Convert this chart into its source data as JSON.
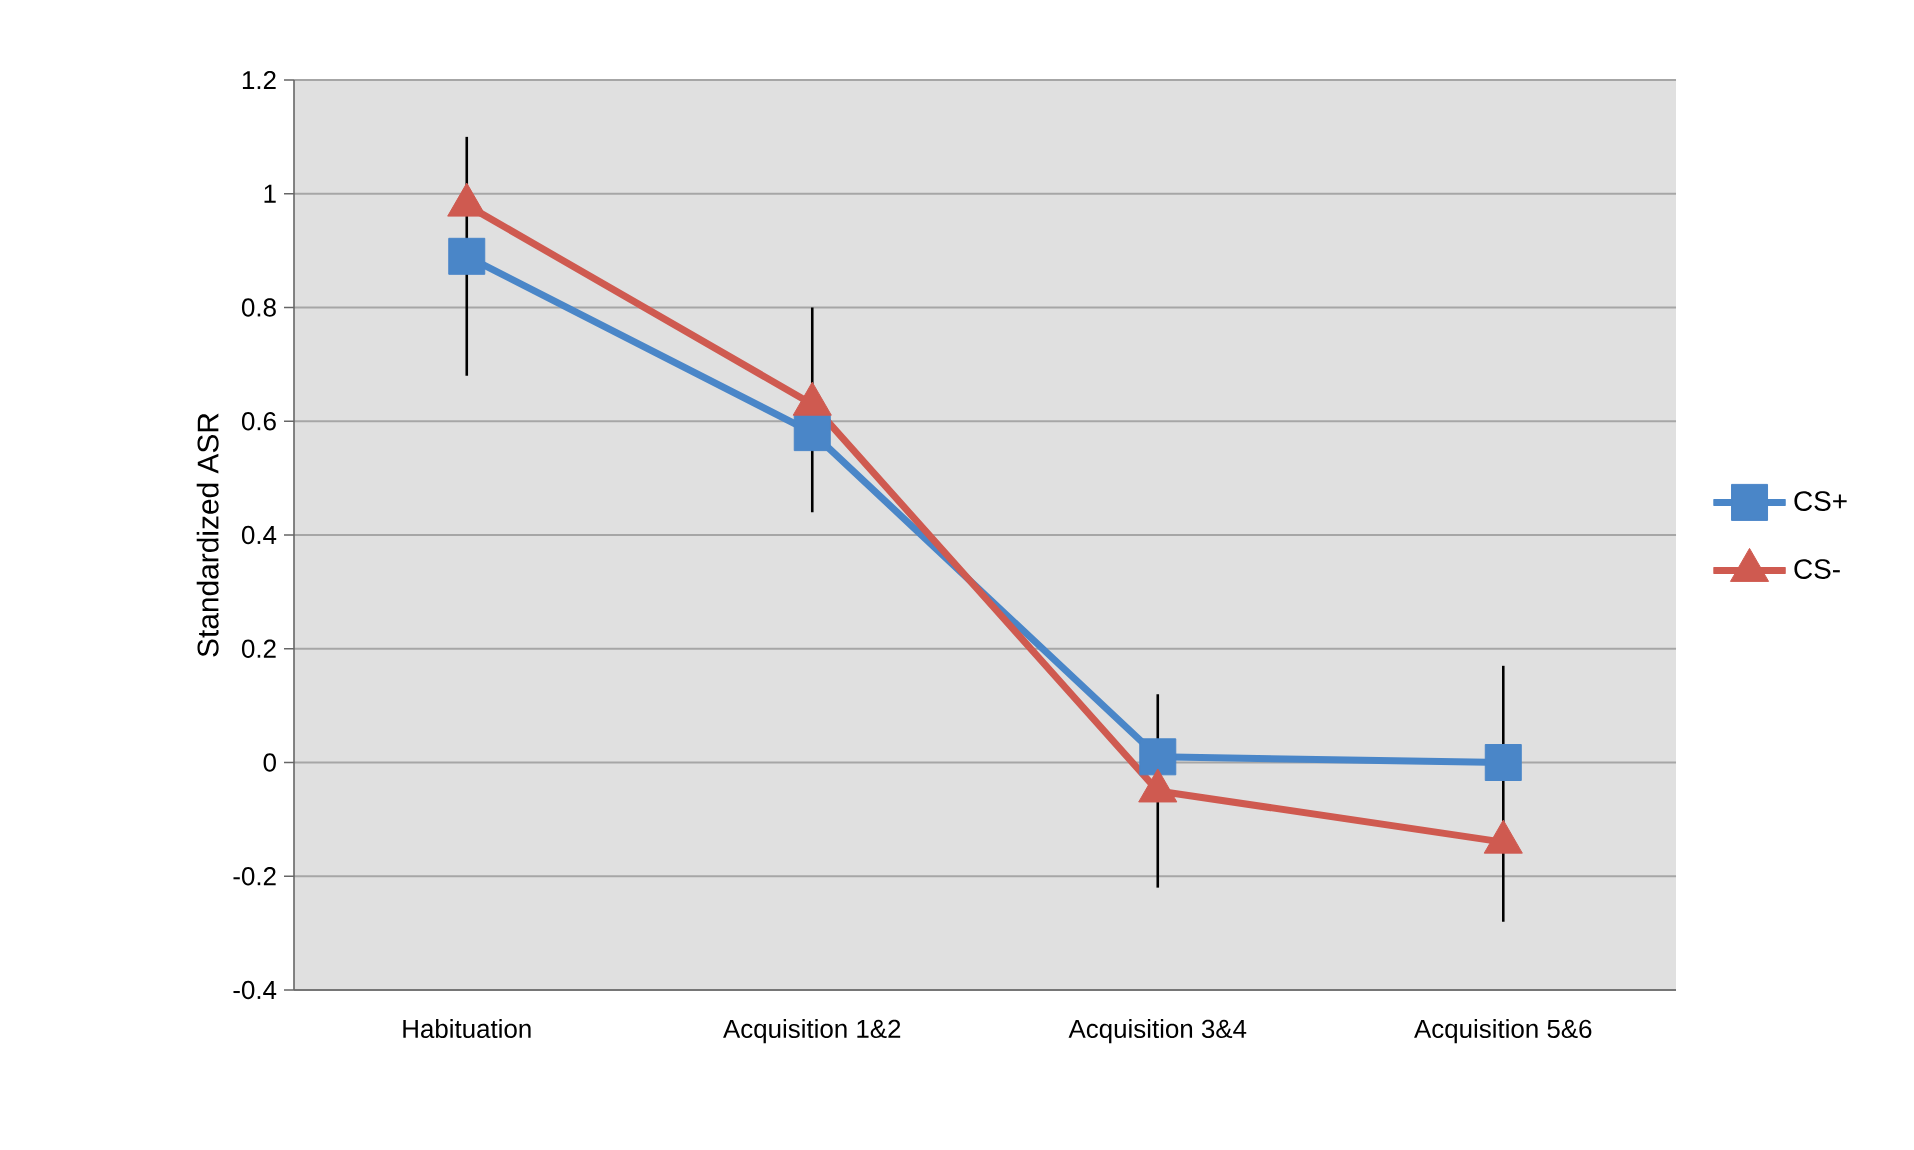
{
  "chart_data": {
    "type": "line",
    "ylabel": "Standardized ASR",
    "categories": [
      "Habituation",
      "Acquisition 1&2",
      "Acquisition 3&4",
      "Acquisition 5&6"
    ],
    "series": [
      {
        "name": "CS+",
        "color": "#4a86c8",
        "marker": "square",
        "values": [
          0.89,
          0.58,
          0.01,
          0.0
        ],
        "errors": [
          [
            0.68,
            1.1
          ],
          [
            0.44,
            0.8
          ],
          [
            -0.22,
            0.12
          ],
          [
            -0.28,
            0.17
          ]
        ]
      },
      {
        "name": "CS-",
        "color": "#cf5a50",
        "marker": "triangle",
        "values": [
          0.98,
          0.63,
          -0.05,
          -0.14
        ]
      }
    ],
    "ylim": [
      -0.4,
      1.2
    ],
    "yticks": [
      -0.4,
      -0.2,
      0,
      0.2,
      0.4,
      0.6,
      0.8,
      1,
      1.2
    ],
    "grid": "y",
    "legend": "right"
  }
}
